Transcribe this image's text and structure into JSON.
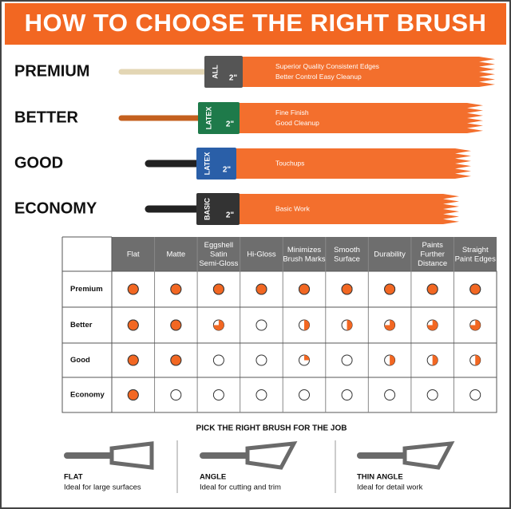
{
  "title": "HOW TO CHOOSE THE RIGHT BRUSH",
  "tiers": [
    {
      "name": "PREMIUM",
      "ferrule": "ALL",
      "size": "2\"",
      "notes": [
        "Superior Quality  Consistent Edges",
        "Better Control  Easy Cleanup"
      ]
    },
    {
      "name": "BETTER",
      "ferrule": "LATEX",
      "size": "2\"",
      "notes": [
        "Fine Finish",
        "Good Cleanup"
      ]
    },
    {
      "name": "GOOD",
      "ferrule": "LATEX",
      "size": "2\"",
      "notes": [
        "Touchups"
      ]
    },
    {
      "name": "ECONOMY",
      "ferrule": "BASIC",
      "size": "2\"",
      "notes": [
        "Basic Work"
      ]
    }
  ],
  "table": {
    "headers": [
      [
        "Flat"
      ],
      [
        "Matte"
      ],
      [
        "Eggshell",
        "Satin",
        "Semi-Gloss"
      ],
      [
        "Hi-Gloss"
      ],
      [
        "Minimizes",
        "Brush Marks"
      ],
      [
        "Smooth",
        "Surface"
      ],
      [
        "Durability"
      ],
      [
        "Paints",
        "Further",
        "Distance"
      ],
      [
        "Straight",
        "Paint Edges"
      ]
    ],
    "rows": [
      {
        "label": "Premium",
        "ratings": [
          1,
          1,
          1,
          1,
          1,
          1,
          1,
          1,
          1
        ]
      },
      {
        "label": "Better",
        "ratings": [
          1,
          1,
          0.75,
          0,
          0.5,
          0.5,
          0.75,
          0.75,
          0.75
        ]
      },
      {
        "label": "Good",
        "ratings": [
          1,
          1,
          0,
          0,
          0.25,
          0,
          0.5,
          0.5,
          0.5
        ]
      },
      {
        "label": "Economy",
        "ratings": [
          1,
          0,
          0,
          0,
          0,
          0,
          0,
          0,
          0
        ]
      }
    ]
  },
  "guide": {
    "title": "PICK THE RIGHT BRUSH FOR THE JOB",
    "items": [
      {
        "name": "FLAT",
        "text": "Ideal for large surfaces"
      },
      {
        "name": "ANGLE",
        "text": "Ideal for cutting and trim"
      },
      {
        "name": "THIN ANGLE",
        "text": "Ideal for detail work"
      }
    ]
  }
}
